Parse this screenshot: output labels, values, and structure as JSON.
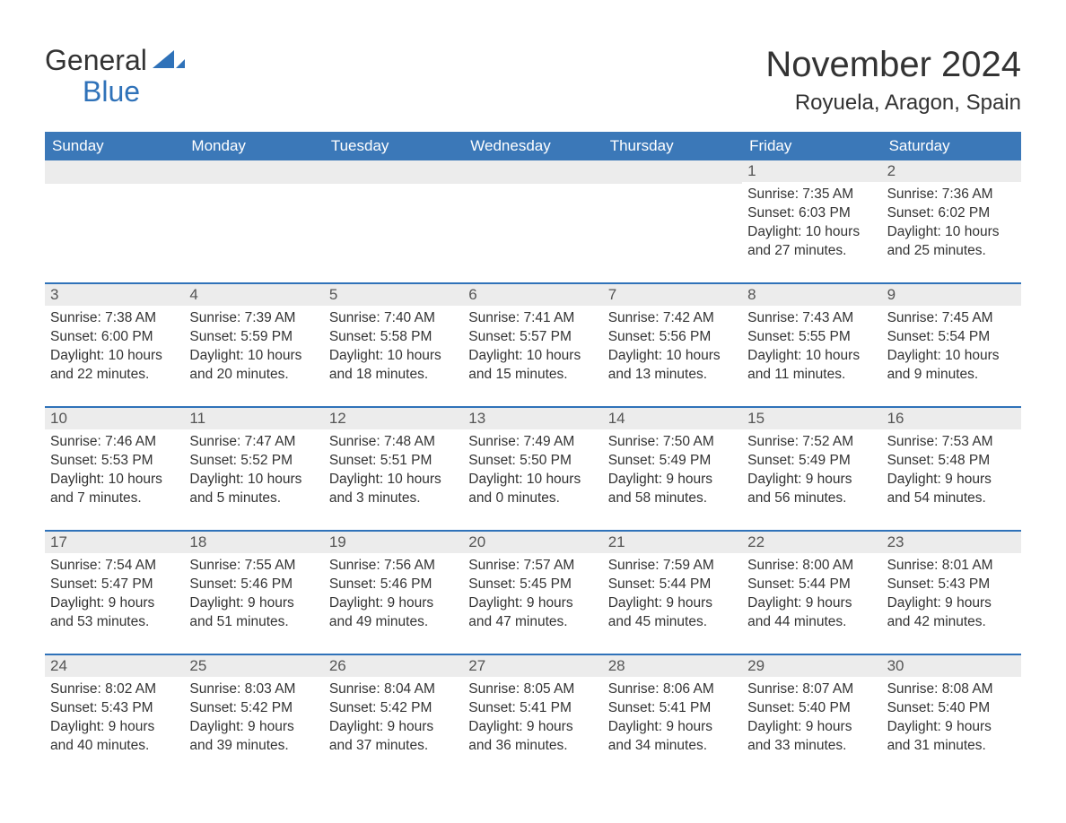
{
  "brand": {
    "line1": "General",
    "line2": "Blue",
    "icon_color": "#2f72b9"
  },
  "title": "November 2024",
  "location": "Royuela, Aragon, Spain",
  "colors": {
    "header_bg": "#3b78b8",
    "row_border": "#2f72b9",
    "daynum_bg": "#ececec",
    "text": "#333333",
    "background": "#ffffff"
  },
  "weekdays": [
    "Sunday",
    "Monday",
    "Tuesday",
    "Wednesday",
    "Thursday",
    "Friday",
    "Saturday"
  ],
  "weeks": [
    [
      null,
      null,
      null,
      null,
      null,
      {
        "n": "1",
        "sunrise": "Sunrise: 7:35 AM",
        "sunset": "Sunset: 6:03 PM",
        "daylight": "Daylight: 10 hours and 27 minutes."
      },
      {
        "n": "2",
        "sunrise": "Sunrise: 7:36 AM",
        "sunset": "Sunset: 6:02 PM",
        "daylight": "Daylight: 10 hours and 25 minutes."
      }
    ],
    [
      {
        "n": "3",
        "sunrise": "Sunrise: 7:38 AM",
        "sunset": "Sunset: 6:00 PM",
        "daylight": "Daylight: 10 hours and 22 minutes."
      },
      {
        "n": "4",
        "sunrise": "Sunrise: 7:39 AM",
        "sunset": "Sunset: 5:59 PM",
        "daylight": "Daylight: 10 hours and 20 minutes."
      },
      {
        "n": "5",
        "sunrise": "Sunrise: 7:40 AM",
        "sunset": "Sunset: 5:58 PM",
        "daylight": "Daylight: 10 hours and 18 minutes."
      },
      {
        "n": "6",
        "sunrise": "Sunrise: 7:41 AM",
        "sunset": "Sunset: 5:57 PM",
        "daylight": "Daylight: 10 hours and 15 minutes."
      },
      {
        "n": "7",
        "sunrise": "Sunrise: 7:42 AM",
        "sunset": "Sunset: 5:56 PM",
        "daylight": "Daylight: 10 hours and 13 minutes."
      },
      {
        "n": "8",
        "sunrise": "Sunrise: 7:43 AM",
        "sunset": "Sunset: 5:55 PM",
        "daylight": "Daylight: 10 hours and 11 minutes."
      },
      {
        "n": "9",
        "sunrise": "Sunrise: 7:45 AM",
        "sunset": "Sunset: 5:54 PM",
        "daylight": "Daylight: 10 hours and 9 minutes."
      }
    ],
    [
      {
        "n": "10",
        "sunrise": "Sunrise: 7:46 AM",
        "sunset": "Sunset: 5:53 PM",
        "daylight": "Daylight: 10 hours and 7 minutes."
      },
      {
        "n": "11",
        "sunrise": "Sunrise: 7:47 AM",
        "sunset": "Sunset: 5:52 PM",
        "daylight": "Daylight: 10 hours and 5 minutes."
      },
      {
        "n": "12",
        "sunrise": "Sunrise: 7:48 AM",
        "sunset": "Sunset: 5:51 PM",
        "daylight": "Daylight: 10 hours and 3 minutes."
      },
      {
        "n": "13",
        "sunrise": "Sunrise: 7:49 AM",
        "sunset": "Sunset: 5:50 PM",
        "daylight": "Daylight: 10 hours and 0 minutes."
      },
      {
        "n": "14",
        "sunrise": "Sunrise: 7:50 AM",
        "sunset": "Sunset: 5:49 PM",
        "daylight": "Daylight: 9 hours and 58 minutes."
      },
      {
        "n": "15",
        "sunrise": "Sunrise: 7:52 AM",
        "sunset": "Sunset: 5:49 PM",
        "daylight": "Daylight: 9 hours and 56 minutes."
      },
      {
        "n": "16",
        "sunrise": "Sunrise: 7:53 AM",
        "sunset": "Sunset: 5:48 PM",
        "daylight": "Daylight: 9 hours and 54 minutes."
      }
    ],
    [
      {
        "n": "17",
        "sunrise": "Sunrise: 7:54 AM",
        "sunset": "Sunset: 5:47 PM",
        "daylight": "Daylight: 9 hours and 53 minutes."
      },
      {
        "n": "18",
        "sunrise": "Sunrise: 7:55 AM",
        "sunset": "Sunset: 5:46 PM",
        "daylight": "Daylight: 9 hours and 51 minutes."
      },
      {
        "n": "19",
        "sunrise": "Sunrise: 7:56 AM",
        "sunset": "Sunset: 5:46 PM",
        "daylight": "Daylight: 9 hours and 49 minutes."
      },
      {
        "n": "20",
        "sunrise": "Sunrise: 7:57 AM",
        "sunset": "Sunset: 5:45 PM",
        "daylight": "Daylight: 9 hours and 47 minutes."
      },
      {
        "n": "21",
        "sunrise": "Sunrise: 7:59 AM",
        "sunset": "Sunset: 5:44 PM",
        "daylight": "Daylight: 9 hours and 45 minutes."
      },
      {
        "n": "22",
        "sunrise": "Sunrise: 8:00 AM",
        "sunset": "Sunset: 5:44 PM",
        "daylight": "Daylight: 9 hours and 44 minutes."
      },
      {
        "n": "23",
        "sunrise": "Sunrise: 8:01 AM",
        "sunset": "Sunset: 5:43 PM",
        "daylight": "Daylight: 9 hours and 42 minutes."
      }
    ],
    [
      {
        "n": "24",
        "sunrise": "Sunrise: 8:02 AM",
        "sunset": "Sunset: 5:43 PM",
        "daylight": "Daylight: 9 hours and 40 minutes."
      },
      {
        "n": "25",
        "sunrise": "Sunrise: 8:03 AM",
        "sunset": "Sunset: 5:42 PM",
        "daylight": "Daylight: 9 hours and 39 minutes."
      },
      {
        "n": "26",
        "sunrise": "Sunrise: 8:04 AM",
        "sunset": "Sunset: 5:42 PM",
        "daylight": "Daylight: 9 hours and 37 minutes."
      },
      {
        "n": "27",
        "sunrise": "Sunrise: 8:05 AM",
        "sunset": "Sunset: 5:41 PM",
        "daylight": "Daylight: 9 hours and 36 minutes."
      },
      {
        "n": "28",
        "sunrise": "Sunrise: 8:06 AM",
        "sunset": "Sunset: 5:41 PM",
        "daylight": "Daylight: 9 hours and 34 minutes."
      },
      {
        "n": "29",
        "sunrise": "Sunrise: 8:07 AM",
        "sunset": "Sunset: 5:40 PM",
        "daylight": "Daylight: 9 hours and 33 minutes."
      },
      {
        "n": "30",
        "sunrise": "Sunrise: 8:08 AM",
        "sunset": "Sunset: 5:40 PM",
        "daylight": "Daylight: 9 hours and 31 minutes."
      }
    ]
  ]
}
